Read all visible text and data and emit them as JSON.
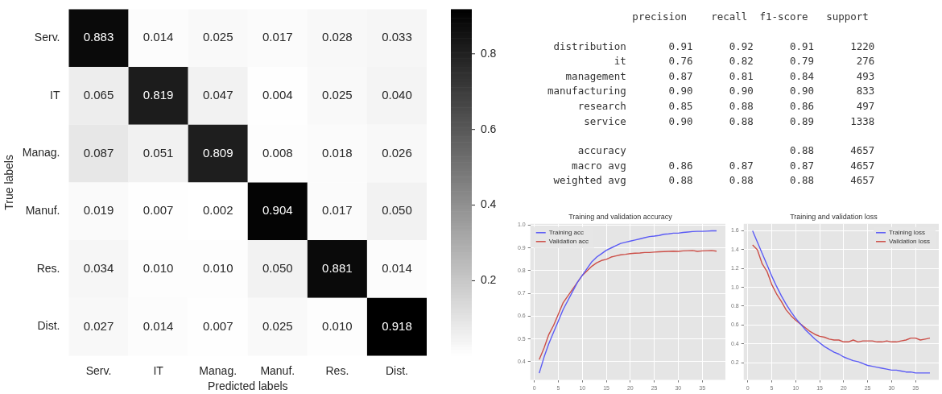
{
  "chart_data": [
    {
      "type": "heatmap",
      "xlabel": "Predicted labels",
      "ylabel": "True labels",
      "categories": [
        "Serv.",
        "IT",
        "Manag.",
        "Manuf.",
        "Res.",
        "Dist."
      ],
      "y_categories": [
        "Serv.",
        "IT",
        "Manag.",
        "Manuf.",
        "Res.",
        "Dist."
      ],
      "cells": [
        [
          0.883,
          0.014,
          0.025,
          0.017,
          0.028,
          0.033
        ],
        [
          0.065,
          0.819,
          0.047,
          0.004,
          0.025,
          0.04
        ],
        [
          0.087,
          0.051,
          0.809,
          0.008,
          0.018,
          0.026
        ],
        [
          0.019,
          0.007,
          0.002,
          0.904,
          0.017,
          0.05
        ],
        [
          0.034,
          0.01,
          0.01,
          0.05,
          0.881,
          0.014
        ],
        [
          0.027,
          0.014,
          0.007,
          0.025,
          0.01,
          0.918
        ]
      ],
      "cell_labels": [
        [
          "0.883",
          "0.014",
          "0.025",
          "0.017",
          "0.028",
          "0.033"
        ],
        [
          "0.065",
          "0.819",
          "0.047",
          "0.004",
          "0.025",
          "0.040"
        ],
        [
          "0.087",
          "0.051",
          "0.809",
          "0.008",
          "0.018",
          "0.026"
        ],
        [
          "0.019",
          "0.007",
          "0.002",
          "0.904",
          "0.017",
          "0.050"
        ],
        [
          "0.034",
          "0.010",
          "0.010",
          "0.050",
          "0.881",
          "0.014"
        ],
        [
          "0.027",
          "0.014",
          "0.007",
          "0.025",
          "0.010",
          "0.918"
        ]
      ],
      "clim": [
        0.002,
        0.918
      ],
      "cticks": [
        0.2,
        0.4,
        0.6,
        0.8
      ]
    },
    {
      "type": "other",
      "annotations": [
        "              precision    recall  f1-score   support",
        " distribution       0.91      0.92      0.91      1220",
        "           it       0.76      0.82      0.79       276",
        "   management       0.87      0.81      0.84       493",
        "manufacturing       0.90      0.90      0.90       833",
        "     research       0.85      0.88      0.86       497",
        "      service       0.90      0.88      0.89      1338",
        "     accuracy                           0.88      4657",
        "    macro avg       0.86      0.87      0.87      4657",
        " weighted avg       0.88      0.88      0.88      4657"
      ]
    },
    {
      "type": "line",
      "title": "Training and validation accuracy",
      "legend": "top left",
      "grid": true,
      "xlim": [
        -0.85,
        39.85
      ],
      "xticks": [
        0,
        5,
        10,
        15,
        20,
        25,
        30,
        35
      ],
      "ylim": [
        0.32,
        1.006
      ],
      "yticks": [
        0.4,
        0.5,
        0.6,
        0.7,
        0.8,
        0.9,
        {
          "value": 1,
          "label": "1.0"
        }
      ],
      "x": [
        1,
        2,
        3,
        4,
        5,
        6,
        7,
        8,
        9,
        10,
        11,
        12,
        13,
        14,
        15,
        16,
        17,
        18,
        19,
        20,
        21,
        22,
        23,
        24,
        25,
        26,
        27,
        28,
        29,
        30,
        31,
        32,
        33,
        34,
        35,
        36,
        37,
        38
      ],
      "series": [
        {
          "name": "Training acc",
          "color": "#5b5bf5",
          "values": [
            0.35,
            0.42,
            0.48,
            0.53,
            0.58,
            0.63,
            0.67,
            0.71,
            0.75,
            0.78,
            0.81,
            0.84,
            0.86,
            0.875,
            0.89,
            0.9,
            0.91,
            0.92,
            0.925,
            0.93,
            0.935,
            0.94,
            0.945,
            0.95,
            0.952,
            0.955,
            0.96,
            0.962,
            0.965,
            0.965,
            0.968,
            0.97,
            0.972,
            0.973,
            0.973,
            0.974,
            0.975,
            0.975
          ]
        },
        {
          "name": "Validation acc",
          "color": "#cc4f48",
          "values": [
            0.41,
            0.46,
            0.52,
            0.56,
            0.61,
            0.66,
            0.69,
            0.72,
            0.75,
            0.78,
            0.8,
            0.82,
            0.835,
            0.845,
            0.85,
            0.86,
            0.865,
            0.87,
            0.872,
            0.875,
            0.877,
            0.878,
            0.88,
            0.88,
            0.882,
            0.883,
            0.884,
            0.885,
            0.886,
            0.885,
            0.887,
            0.888,
            0.889,
            0.885,
            0.887,
            0.888,
            0.889,
            0.886
          ]
        }
      ]
    },
    {
      "type": "line",
      "title": "Training and validation loss",
      "legend": "top right",
      "grid": true,
      "xlim": [
        -0.85,
        39.85
      ],
      "xticks": [
        0,
        5,
        10,
        15,
        20,
        25,
        30,
        35
      ],
      "ylim": [
        0.015,
        1.675
      ],
      "yticks": [
        0.2,
        0.4,
        0.6,
        0.8,
        {
          "value": 1,
          "label": "1.0"
        },
        1.2,
        1.4,
        1.6
      ],
      "x": [
        1,
        2,
        3,
        4,
        5,
        6,
        7,
        8,
        9,
        10,
        11,
        12,
        13,
        14,
        15,
        16,
        17,
        18,
        19,
        20,
        21,
        22,
        23,
        24,
        25,
        26,
        27,
        28,
        29,
        30,
        31,
        32,
        33,
        34,
        35,
        36,
        37,
        38
      ],
      "series": [
        {
          "name": "Training loss",
          "color": "#5b5bf5",
          "values": [
            1.6,
            1.48,
            1.36,
            1.24,
            1.12,
            1.01,
            0.91,
            0.82,
            0.74,
            0.67,
            0.61,
            0.55,
            0.5,
            0.45,
            0.41,
            0.37,
            0.34,
            0.31,
            0.29,
            0.26,
            0.24,
            0.22,
            0.21,
            0.19,
            0.17,
            0.16,
            0.15,
            0.14,
            0.13,
            0.12,
            0.12,
            0.11,
            0.1,
            0.1,
            0.09,
            0.09,
            0.09,
            0.09
          ]
        },
        {
          "name": "Validation loss",
          "color": "#cc4f48",
          "values": [
            1.45,
            1.4,
            1.25,
            1.17,
            1.03,
            0.93,
            0.85,
            0.76,
            0.7,
            0.65,
            0.61,
            0.57,
            0.53,
            0.5,
            0.48,
            0.47,
            0.45,
            0.44,
            0.44,
            0.42,
            0.42,
            0.44,
            0.42,
            0.43,
            0.43,
            0.43,
            0.42,
            0.42,
            0.43,
            0.42,
            0.42,
            0.43,
            0.44,
            0.46,
            0.46,
            0.44,
            0.45,
            0.46
          ]
        }
      ]
    }
  ]
}
